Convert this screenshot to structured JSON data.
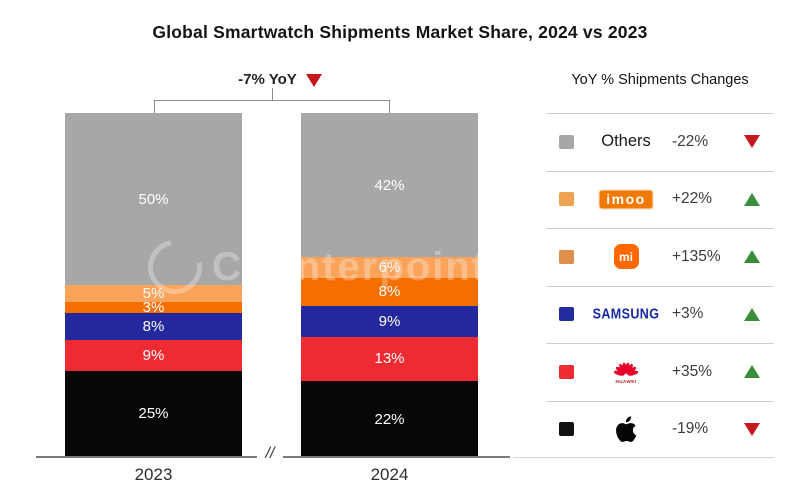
{
  "title": "Global Smartwatch Shipments Market Share, 2024 vs 2023",
  "annotation": {
    "label": "-7% YoY",
    "direction": "down"
  },
  "watermark": "Counterpoint",
  "axis": {
    "break_symbol": "//"
  },
  "chart_data": {
    "type": "bar",
    "subtype": "stacked-100-percent",
    "title": "Global Smartwatch Shipments Market Share, 2024 vs 2023",
    "categories": [
      "2023",
      "2024"
    ],
    "unit": "%",
    "total_change": "-7% YoY",
    "series": [
      {
        "name": "Others",
        "color": "#A8A7A7",
        "values": [
          50,
          42
        ]
      },
      {
        "name": "imoo",
        "color": "#FBA35A",
        "values": [
          5,
          6
        ]
      },
      {
        "name": "Xiaomi",
        "color": "#F56E00",
        "values": [
          3,
          8
        ]
      },
      {
        "name": "Samsung",
        "color": "#23299C",
        "values": [
          8,
          9
        ]
      },
      {
        "name": "Huawei",
        "color": "#EE2B33",
        "values": [
          9,
          13
        ]
      },
      {
        "name": "Apple",
        "color": "#070707",
        "values": [
          25,
          22
        ]
      }
    ],
    "legend_position": "right"
  },
  "legend": {
    "header": "YoY % Shipments Changes",
    "rows": [
      {
        "brand": "Others",
        "label": "Others",
        "change": "-22%",
        "direction": "down",
        "swatch": "#A8A7A7"
      },
      {
        "brand": "imoo",
        "label": "imoo",
        "change": "+22%",
        "direction": "up",
        "swatch": "#F0A152"
      },
      {
        "brand": "Xiaomi",
        "label": "mi",
        "change": "+135%",
        "direction": "up",
        "swatch": "#DE8F4C"
      },
      {
        "brand": "Samsung",
        "label": "SAMSUNG",
        "change": "+3%",
        "direction": "up",
        "swatch": "#232C9E"
      },
      {
        "brand": "Huawei",
        "label": "HUAWEI",
        "change": "+35%",
        "direction": "up",
        "swatch": "#EE2B33"
      },
      {
        "brand": "Apple",
        "label": "Apple",
        "change": "-19%",
        "direction": "down",
        "swatch": "#111111"
      }
    ]
  },
  "colors": {
    "up": "#3A8E3A",
    "down": "#C4161C",
    "axis": "#7C7C7C",
    "divider": "#CCCCCC"
  }
}
